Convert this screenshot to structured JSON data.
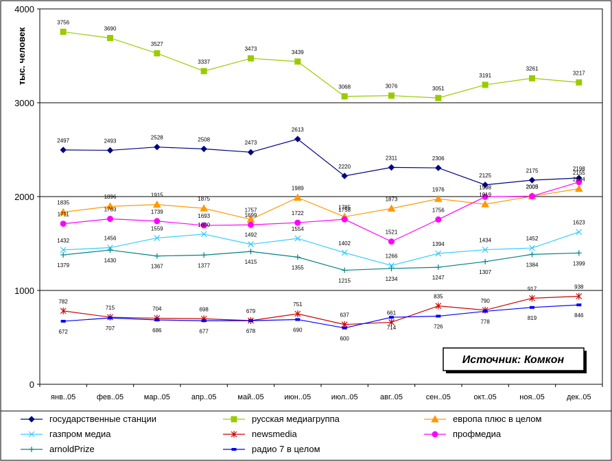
{
  "chart_data": {
    "type": "line",
    "ylabel": "тыс. человек",
    "ylim": [
      0,
      4000
    ],
    "yticks": [
      "0",
      "1000",
      "2000",
      "3000",
      "4000"
    ],
    "ytick_values": [
      0,
      1000,
      2000,
      3000,
      4000
    ],
    "categories": [
      "янв..05",
      "фев..05",
      "мар..05",
      "апр..05",
      "май..05",
      "июн..05",
      "июл..05",
      "авг..05",
      "сен..05",
      "окт..05",
      "ноя..05",
      "дек..05"
    ],
    "grid": "horizontal",
    "legend_position": "bottom",
    "source_note": "Источник: Комкон",
    "series": [
      {
        "name": "государственные станции",
        "color": "#000080",
        "marker": "diamond",
        "values": [
          2497,
          2493,
          2528,
          2508,
          2473,
          2613,
          2220,
          2311,
          2306,
          2125,
          2175,
          2198
        ],
        "labels": [
          "2497",
          "2493",
          "2528",
          "2508",
          "2473",
          "2613",
          "2220",
          "2311",
          "2306",
          "2125",
          "2175",
          "2198"
        ]
      },
      {
        "name": "русская медиагруппа",
        "color": "#99cc00",
        "marker": "square",
        "values": [
          3756,
          3690,
          3527,
          3337,
          3473,
          3439,
          3068,
          3076,
          3051,
          3191,
          3261,
          3217
        ],
        "labels": [
          "3756",
          "3690",
          "3527",
          "3337",
          "3473",
          "3439",
          "3068",
          "3076",
          "3051",
          "3191",
          "3261",
          "3217"
        ]
      },
      {
        "name": "европа плюс в целом",
        "color": "#ff9900",
        "marker": "triangle",
        "values": [
          1835,
          1896,
          1915,
          1875,
          1757,
          1989,
          1785,
          1873,
          1976,
          1919,
          2003,
          2084
        ],
        "labels": [
          "1835",
          "1896",
          "1915",
          "1875",
          "1757",
          "1989",
          "1785",
          "1873",
          "1976",
          "1919",
          "2003",
          "2084"
        ]
      },
      {
        "name": "газпром медиа",
        "color": "#33ccff",
        "marker": "x",
        "values": [
          1432,
          1456,
          1559,
          1600,
          1492,
          1554,
          1402,
          1266,
          1394,
          1434,
          1452,
          1623
        ],
        "labels": [
          "1432",
          "1456",
          "1559",
          "1600",
          "1492",
          "1554",
          "1402",
          "1266",
          "1394",
          "1434",
          "1452",
          "1623"
        ]
      },
      {
        "name": "newsmedia",
        "color": "#cc0000",
        "marker": "star",
        "values": [
          782,
          715,
          704,
          698,
          679,
          751,
          637,
          661,
          835,
          790,
          917,
          938
        ],
        "labels": [
          "782",
          "715",
          "704",
          "698",
          "679",
          "751",
          "637",
          "661",
          "835",
          "790",
          "917",
          "938"
        ]
      },
      {
        "name": "профмедиа",
        "color": "#ff00ff",
        "marker": "circle",
        "values": [
          1711,
          1763,
          1739,
          1693,
          1699,
          1722,
          1758,
          1521,
          1756,
          1998,
          2005,
          2155
        ],
        "labels": [
          "1711",
          "1763",
          "1739",
          "1693",
          "1699",
          "1722",
          "1758",
          "1521",
          "1756",
          "1998",
          "2005",
          "2155"
        ]
      },
      {
        "name": "arnoldPrize",
        "color": "#008080",
        "marker": "plus",
        "values": [
          1379,
          1430,
          1367,
          1377,
          1415,
          1355,
          1215,
          1234,
          1247,
          1307,
          1384,
          1399
        ],
        "labels": [
          "1379",
          "1430",
          "1367",
          "1377",
          "1415",
          "1355",
          "1215",
          "1234",
          "1247",
          "1307",
          "1384",
          "1399"
        ]
      },
      {
        "name": "радио 7 в целом",
        "color": "#0000ff",
        "marker": "dash",
        "values": [
          672,
          707,
          686,
          677,
          678,
          690,
          600,
          714,
          726,
          778,
          819,
          846
        ],
        "labels": [
          "672",
          "707",
          "686",
          "677",
          "678",
          "690",
          "600",
          "714",
          "726",
          "778",
          "819",
          "846"
        ]
      }
    ]
  }
}
